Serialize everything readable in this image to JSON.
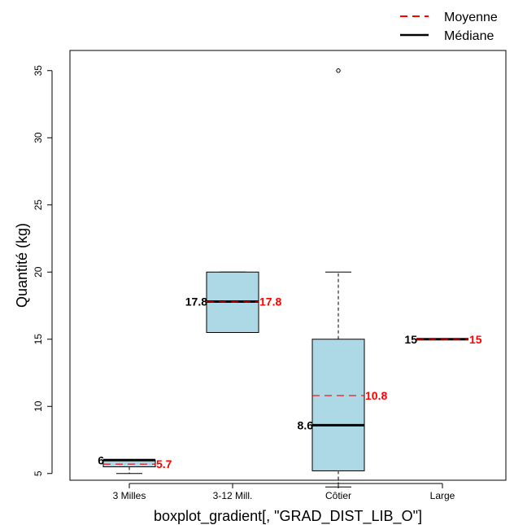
{
  "chart_data": {
    "type": "boxplot",
    "xlabel": "boxplot_gradient[, \"GRAD_DIST_LIB_O\"]",
    "ylabel": "Quantité (kg)",
    "ylim": [
      4.5,
      36.5
    ],
    "yticks": [
      5,
      10,
      15,
      20,
      25,
      30,
      35
    ],
    "box_color": "#add8e6",
    "mean_color": "#ff0000",
    "legend": {
      "position": "top-right",
      "entries": [
        {
          "label": "Moyenne",
          "style": "dashed",
          "color": "#ff0000"
        },
        {
          "label": "Médiane",
          "style": "solid",
          "color": "#000000"
        }
      ]
    },
    "categories": [
      "3 Milles",
      "3-12 Mill.",
      "Côtier",
      "Large"
    ],
    "boxes": [
      {
        "category": "3 Milles",
        "whisker_low": 5.0,
        "q1": 5.5,
        "median": 6.0,
        "q3": 6.0,
        "whisker_high": 6.0,
        "mean": 5.7,
        "outliers": [],
        "median_label": "6",
        "mean_label": "5.7"
      },
      {
        "category": "3-12 Mill.",
        "whisker_low": 15.5,
        "q1": 15.5,
        "median": 17.8,
        "q3": 20.0,
        "whisker_high": 20.0,
        "mean": 17.8,
        "outliers": [],
        "median_label": "17.8",
        "mean_label": "17.8"
      },
      {
        "category": "Côtier",
        "whisker_low": 4.0,
        "q1": 5.2,
        "median": 8.6,
        "q3": 15.0,
        "whisker_high": 20.0,
        "mean": 10.8,
        "outliers": [
          35.0
        ],
        "median_label": "8.6",
        "mean_label": "10.8"
      },
      {
        "category": "Large",
        "whisker_low": 15.0,
        "q1": 15.0,
        "median": 15.0,
        "q3": 15.0,
        "whisker_high": 15.0,
        "mean": 15.0,
        "outliers": [],
        "median_label": "15",
        "mean_label": "15"
      }
    ]
  }
}
